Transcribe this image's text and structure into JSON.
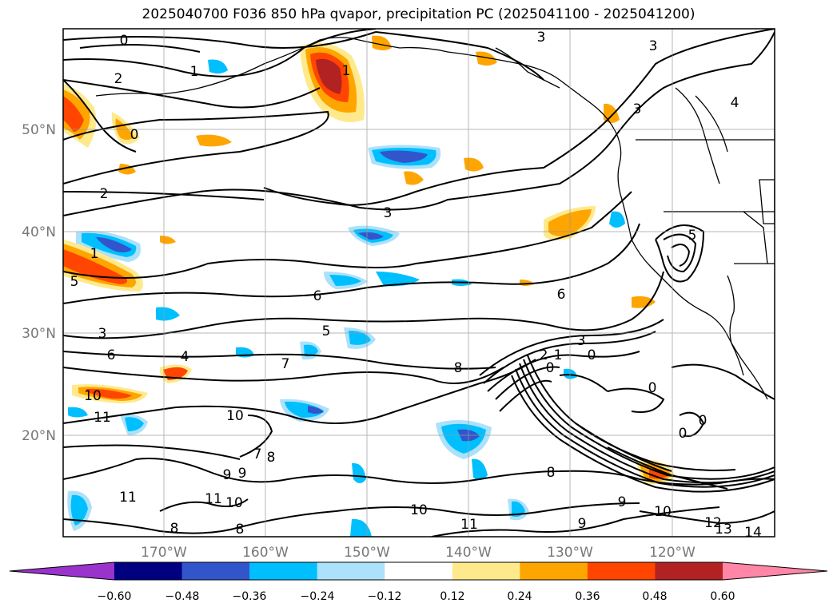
{
  "title": "2025040700 F036 850 hPa qvapor, precipitation PC (2025041100 - 2025041200)",
  "map": {
    "lat_labels": [
      "50°N",
      "40°N",
      "30°N",
      "20°N"
    ],
    "lon_labels": [
      "170°W",
      "160°W",
      "150°W",
      "140°W",
      "130°W",
      "120°W"
    ],
    "contour_labels": [
      "0",
      "1",
      "2",
      "3",
      "3",
      "3",
      "4",
      "2",
      "3",
      "1",
      "0",
      "1",
      "5",
      "6",
      "3",
      "5",
      "6",
      "4",
      "7",
      "8",
      "3",
      "2",
      "1",
      "0",
      "0",
      "5",
      "10",
      "11",
      "10",
      "9",
      "8",
      "11",
      "10",
      "8",
      "9",
      "7",
      "8",
      "8",
      "9",
      "11",
      "10",
      "9",
      "11",
      "10",
      "12",
      "13",
      "14",
      "0",
      "0",
      "0",
      "6"
    ]
  },
  "colorbar": {
    "colors": [
      "#9933cc",
      "#000080",
      "#3355cc",
      "#00bfff",
      "#abe1fa",
      "#ffffff",
      "#fee98c",
      "#ffa500",
      "#ff4500",
      "#b22222",
      "#ff86a6"
    ],
    "tick_labels": [
      "−0.60",
      "−0.48",
      "−0.36",
      "−0.24",
      "−0.12",
      "0.12",
      "0.24",
      "0.36",
      "0.48",
      "0.60"
    ]
  }
}
